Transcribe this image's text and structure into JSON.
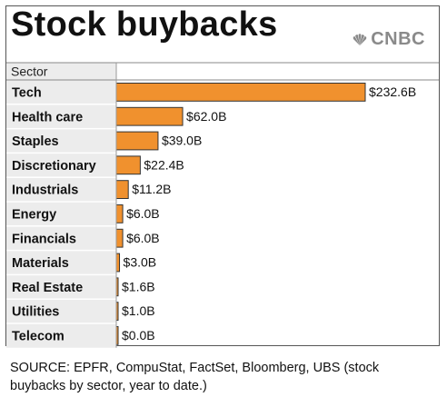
{
  "header": {
    "title": "Stock buybacks",
    "brand": "CNBC"
  },
  "chart_data": {
    "type": "bar",
    "orientation": "horizontal",
    "column_header": "Sector",
    "categories": [
      "Tech",
      "Health care",
      "Staples",
      "Discretionary",
      "Industrials",
      "Energy",
      "Financials",
      "Materials",
      "Real Estate",
      "Utilities",
      "Telecom"
    ],
    "values": [
      232.6,
      62.0,
      39.0,
      22.4,
      11.2,
      6.0,
      6.0,
      3.0,
      1.6,
      1.0,
      0.0
    ],
    "value_labels": [
      "$232.6B",
      "$62.0B",
      "$39.0B",
      "$22.4B",
      "$11.2B",
      "$6.0B",
      "$6.0B",
      "$3.0B",
      "$1.6B",
      "$1.0B",
      "$0.0B"
    ],
    "unit": "$B",
    "xlim": [
      0,
      232.6
    ],
    "bar_color": "#f0912e",
    "label_column_color": "#ececec",
    "grid": false
  },
  "footer": {
    "source": "SOURCE: EPFR, CompuStat, FactSet, Bloomberg, UBS (stock buybacks by sector, year to date.)"
  }
}
